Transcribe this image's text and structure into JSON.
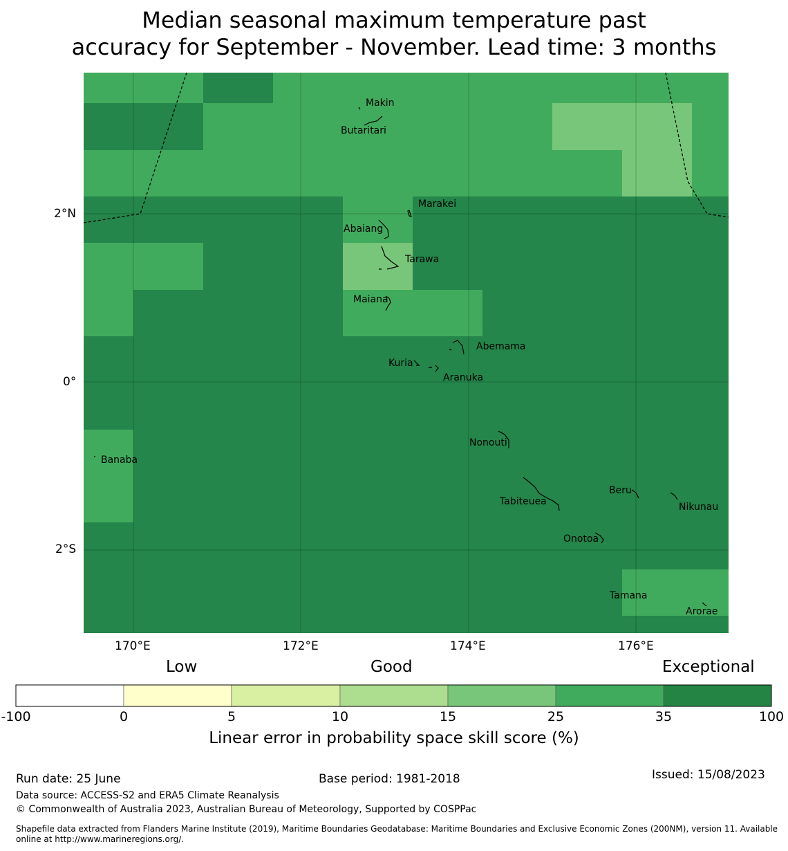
{
  "title_line1": "Median seasonal maximum temperature past",
  "title_line2": "accuracy for September - November. Lead time: 3 months",
  "colors": {
    "very_dark": "#24864a",
    "dark": "#41ab5d",
    "light": "#78c679",
    "boundary": "#000000"
  },
  "map": {
    "lat_ticks": [
      "2°N",
      "0°",
      "2°S"
    ],
    "lon_ticks": [
      "170°E",
      "172°E",
      "174°E",
      "176°E"
    ],
    "islands": [
      "Makin",
      "Butaritari",
      "Marakei",
      "Abaiang",
      "Tarawa",
      "Maiana",
      "Abemama",
      "Kuria",
      "Aranuka",
      "Nonouti",
      "Banaba",
      "Beru",
      "Tabiteuea",
      "Nikunau",
      "Onotoa",
      "Tamana",
      "Arorae"
    ]
  },
  "colorbar": {
    "category_labels": [
      "Low",
      "Good",
      "Exceptional"
    ],
    "tick_labels": [
      "-100",
      "0",
      "5",
      "10",
      "15",
      "25",
      "35",
      "100"
    ],
    "colors": [
      "#ffffff",
      "#ffffcc",
      "#d9f0a3",
      "#addd8e",
      "#78c679",
      "#41ab5d",
      "#238443"
    ],
    "label": "Linear error in probability space skill score (%)"
  },
  "footer": {
    "run_date": "Run date: 25 June",
    "base_period": "Base period: 1981-2018",
    "issued": "Issued: 15/08/2023",
    "data_source": "Data source: ACCESS-S2 and ERA5 Climate Reanalysis",
    "copyright": "© Commonwealth of Australia 2023, Australian Bureau of Meteorology, Supported by COSPPac",
    "shapefile": "Shapefile data extracted from Flanders Marine Institute (2019), Maritime Boundaries Geodatabase: Maritime Boundaries and Exclusive Economic Zones (200NM), version 11. Available online at http://www.marineregions.org/."
  }
}
